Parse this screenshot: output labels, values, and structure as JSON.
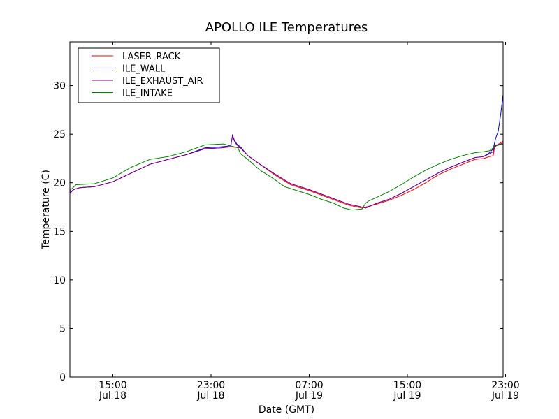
{
  "chart_data": {
    "type": "line",
    "title": "APOLLO ILE Temperatures",
    "xlabel": "Date (GMT)",
    "ylabel": "Temperature (C)",
    "xlim": [
      11.5,
      46.8
    ],
    "ylim": [
      0,
      34.5
    ],
    "x_unit": "hours since Jul 18 00:00 GMT",
    "grid": false,
    "legend_position": "top-left",
    "x_ticks": [
      {
        "value": 15,
        "time": "15:00",
        "date": "Jul 18"
      },
      {
        "value": 23,
        "time": "23:00",
        "date": "Jul 18"
      },
      {
        "value": 31,
        "time": "07:00",
        "date": "Jul 19"
      },
      {
        "value": 39,
        "time": "15:00",
        "date": "Jul 19"
      },
      {
        "value": 47,
        "time": "23:00",
        "date": "Jul 19"
      }
    ],
    "y_ticks": [
      {
        "value": 0,
        "label": "0"
      },
      {
        "value": 5,
        "label": "5"
      },
      {
        "value": 10,
        "label": "10"
      },
      {
        "value": 15,
        "label": "15"
      },
      {
        "value": 20,
        "label": "20"
      },
      {
        "value": 25,
        "label": "25"
      },
      {
        "value": 30,
        "label": "30"
      }
    ],
    "series": [
      {
        "name": "LASER_RACK",
        "color": "#ff0000",
        "x": [
          11.5,
          11.8,
          12.3,
          13.5,
          15.0,
          16.5,
          18.0,
          19.5,
          21.0,
          22.5,
          23.8,
          24.6,
          25.4,
          26.0,
          27.0,
          28.2,
          29.5,
          31.0,
          32.5,
          34.2,
          35.3,
          35.6,
          36.5,
          37.5,
          38.5,
          39.5,
          40.5,
          41.5,
          42.5,
          43.5,
          44.5,
          45.2,
          45.7,
          46.0,
          46.1,
          46.3,
          46.6,
          46.8
        ],
        "y": [
          18.9,
          19.3,
          19.5,
          19.6,
          20.1,
          21.0,
          21.9,
          22.4,
          22.9,
          23.5,
          23.6,
          23.7,
          23.6,
          22.8,
          21.9,
          20.8,
          19.8,
          19.2,
          18.5,
          17.7,
          17.4,
          17.5,
          17.8,
          18.2,
          18.7,
          19.3,
          20.0,
          20.8,
          21.4,
          21.9,
          22.4,
          22.5,
          22.7,
          22.8,
          23.6,
          23.9,
          24.1,
          24.3
        ]
      },
      {
        "name": "ILE_WALL",
        "color": "#0000ff",
        "x": [
          11.5,
          11.8,
          12.3,
          13.5,
          15.0,
          16.5,
          18.0,
          19.5,
          21.0,
          22.5,
          23.8,
          24.6,
          24.75,
          24.9,
          25.1,
          25.4,
          26.0,
          27.0,
          28.2,
          29.5,
          31.0,
          32.5,
          34.2,
          35.3,
          35.6,
          36.5,
          37.5,
          38.5,
          39.5,
          40.5,
          41.5,
          42.5,
          43.5,
          44.5,
          45.2,
          45.7,
          46.0,
          46.2,
          46.4,
          46.6,
          46.8
        ],
        "y": [
          19.0,
          19.3,
          19.5,
          19.6,
          20.1,
          21.0,
          21.9,
          22.4,
          22.9,
          23.6,
          23.7,
          23.8,
          24.9,
          24.4,
          24.0,
          23.7,
          22.8,
          21.9,
          20.9,
          19.9,
          19.3,
          18.6,
          17.8,
          17.5,
          17.4,
          17.9,
          18.3,
          18.9,
          19.6,
          20.3,
          21.0,
          21.6,
          22.1,
          22.6,
          22.7,
          23.1,
          23.5,
          24.6,
          25.3,
          27.0,
          29.1
        ]
      },
      {
        "name": "ILE_EXHAUST_AIR",
        "color": "#800080",
        "x": [
          11.5,
          11.8,
          12.3,
          13.5,
          15.0,
          16.5,
          18.0,
          19.5,
          21.0,
          22.5,
          23.8,
          24.6,
          24.75,
          24.9,
          25.1,
          25.4,
          26.0,
          27.0,
          28.2,
          29.5,
          31.0,
          32.5,
          34.2,
          35.3,
          35.6,
          36.5,
          37.5,
          38.5,
          39.5,
          40.5,
          41.5,
          42.5,
          43.5,
          44.5,
          45.2,
          45.7,
          46.0,
          46.1,
          46.3,
          46.6,
          46.8
        ],
        "y": [
          18.9,
          19.3,
          19.5,
          19.6,
          20.1,
          21.0,
          21.9,
          22.4,
          22.9,
          23.5,
          23.6,
          23.7,
          24.8,
          24.3,
          23.9,
          23.6,
          22.8,
          21.9,
          20.9,
          19.9,
          19.3,
          18.6,
          17.8,
          17.5,
          17.4,
          17.9,
          18.3,
          18.9,
          19.6,
          20.3,
          21.0,
          21.6,
          22.1,
          22.6,
          22.7,
          23.0,
          23.2,
          23.8,
          23.9,
          24.0,
          24.1
        ]
      },
      {
        "name": "ILE_INTAKE",
        "color": "#008000",
        "x": [
          11.5,
          12.0,
          13.5,
          15.0,
          16.5,
          18.0,
          19.5,
          21.0,
          22.5,
          24.0,
          24.6,
          25.2,
          25.4,
          26.0,
          27.0,
          28.0,
          29.0,
          30.0,
          31.0,
          32.0,
          33.0,
          33.8,
          34.5,
          35.3,
          35.6,
          35.8,
          36.5,
          37.5,
          38.5,
          39.5,
          40.5,
          41.5,
          42.5,
          43.5,
          44.5,
          45.2,
          45.7,
          46.0,
          46.2,
          46.5,
          46.8
        ],
        "y": [
          19.2,
          19.8,
          19.9,
          20.5,
          21.6,
          22.4,
          22.7,
          23.2,
          23.9,
          24.0,
          23.8,
          23.6,
          23.0,
          22.4,
          21.3,
          20.5,
          19.6,
          19.2,
          18.8,
          18.3,
          17.9,
          17.4,
          17.2,
          17.3,
          17.9,
          18.1,
          18.5,
          19.1,
          19.8,
          20.6,
          21.3,
          21.9,
          22.4,
          22.8,
          23.1,
          23.2,
          23.3,
          23.6,
          23.8,
          23.9,
          24.0
        ]
      }
    ]
  }
}
